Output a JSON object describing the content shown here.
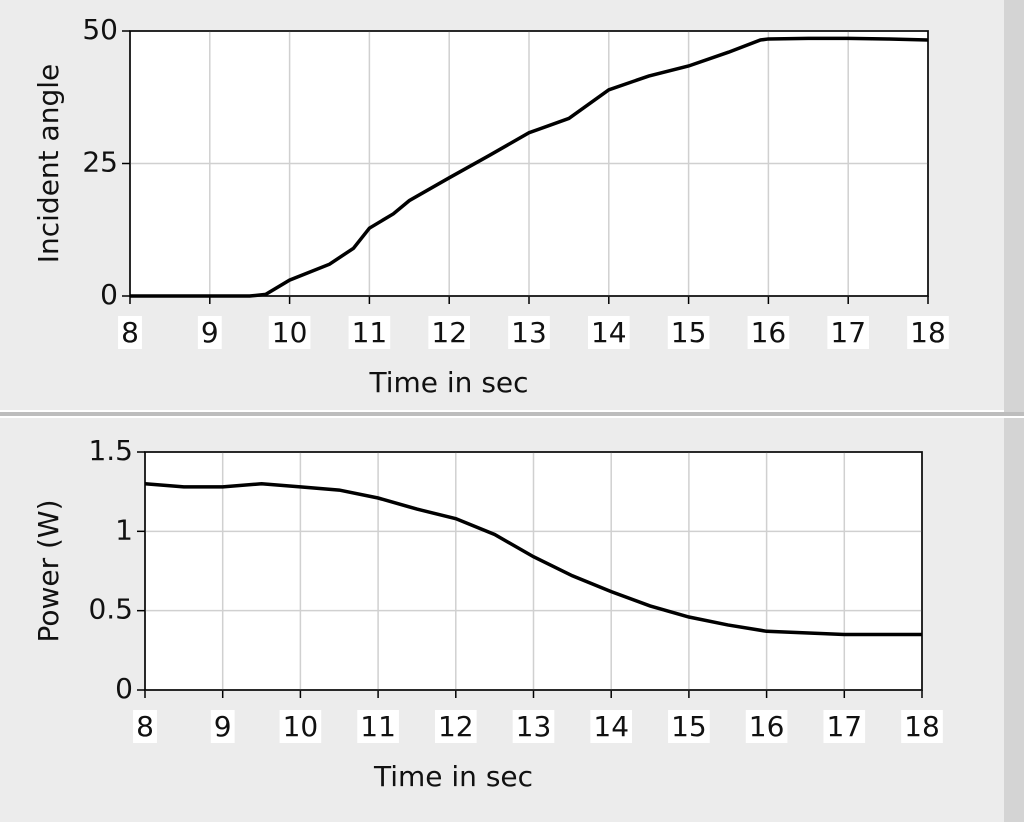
{
  "chart_data": [
    {
      "type": "line",
      "y_label": "Incident angle",
      "x_label": "Time in sec",
      "x": [
        8,
        8.5,
        9,
        9.5,
        9.7,
        10,
        10.5,
        10.8,
        11,
        11.3,
        11.5,
        12,
        12.5,
        13,
        13.5,
        14,
        14.5,
        15,
        15.5,
        15.9,
        16,
        16.5,
        17,
        17.5,
        18
      ],
      "values": [
        0,
        0,
        0,
        0,
        0.3,
        3,
        6,
        9,
        12.8,
        15.5,
        18,
        22.3,
        26.5,
        30.8,
        33.5,
        38.9,
        41.5,
        43.4,
        46,
        48.3,
        48.5,
        48.6,
        48.6,
        48.5,
        48.3
      ],
      "color": "#000000",
      "xlim": [
        8,
        18
      ],
      "xticks": [
        8,
        9,
        10,
        11,
        12,
        13,
        14,
        15,
        16,
        17,
        18
      ],
      "ylim": [
        0,
        50
      ],
      "yticks": [
        0,
        25,
        50
      ],
      "grid": true
    },
    {
      "type": "line",
      "y_label": "Power (W)",
      "x_label": "Time in sec",
      "x": [
        8,
        8.5,
        9,
        9.5,
        10,
        10.5,
        11,
        11.5,
        12,
        12.5,
        13,
        13.5,
        14,
        14.5,
        15,
        15.5,
        16,
        16.5,
        17,
        17.5,
        18
      ],
      "values": [
        1.3,
        1.28,
        1.28,
        1.3,
        1.28,
        1.26,
        1.21,
        1.14,
        1.08,
        0.98,
        0.84,
        0.72,
        0.62,
        0.53,
        0.46,
        0.41,
        0.37,
        0.36,
        0.35,
        0.35,
        0.35
      ],
      "color": "#000000",
      "xlim": [
        8,
        18
      ],
      "xticks": [
        8,
        9,
        10,
        11,
        12,
        13,
        14,
        15,
        16,
        17,
        18
      ],
      "ylim": [
        0,
        1.5
      ],
      "yticks": [
        0,
        0.5,
        1,
        1.5
      ],
      "grid": true
    }
  ]
}
